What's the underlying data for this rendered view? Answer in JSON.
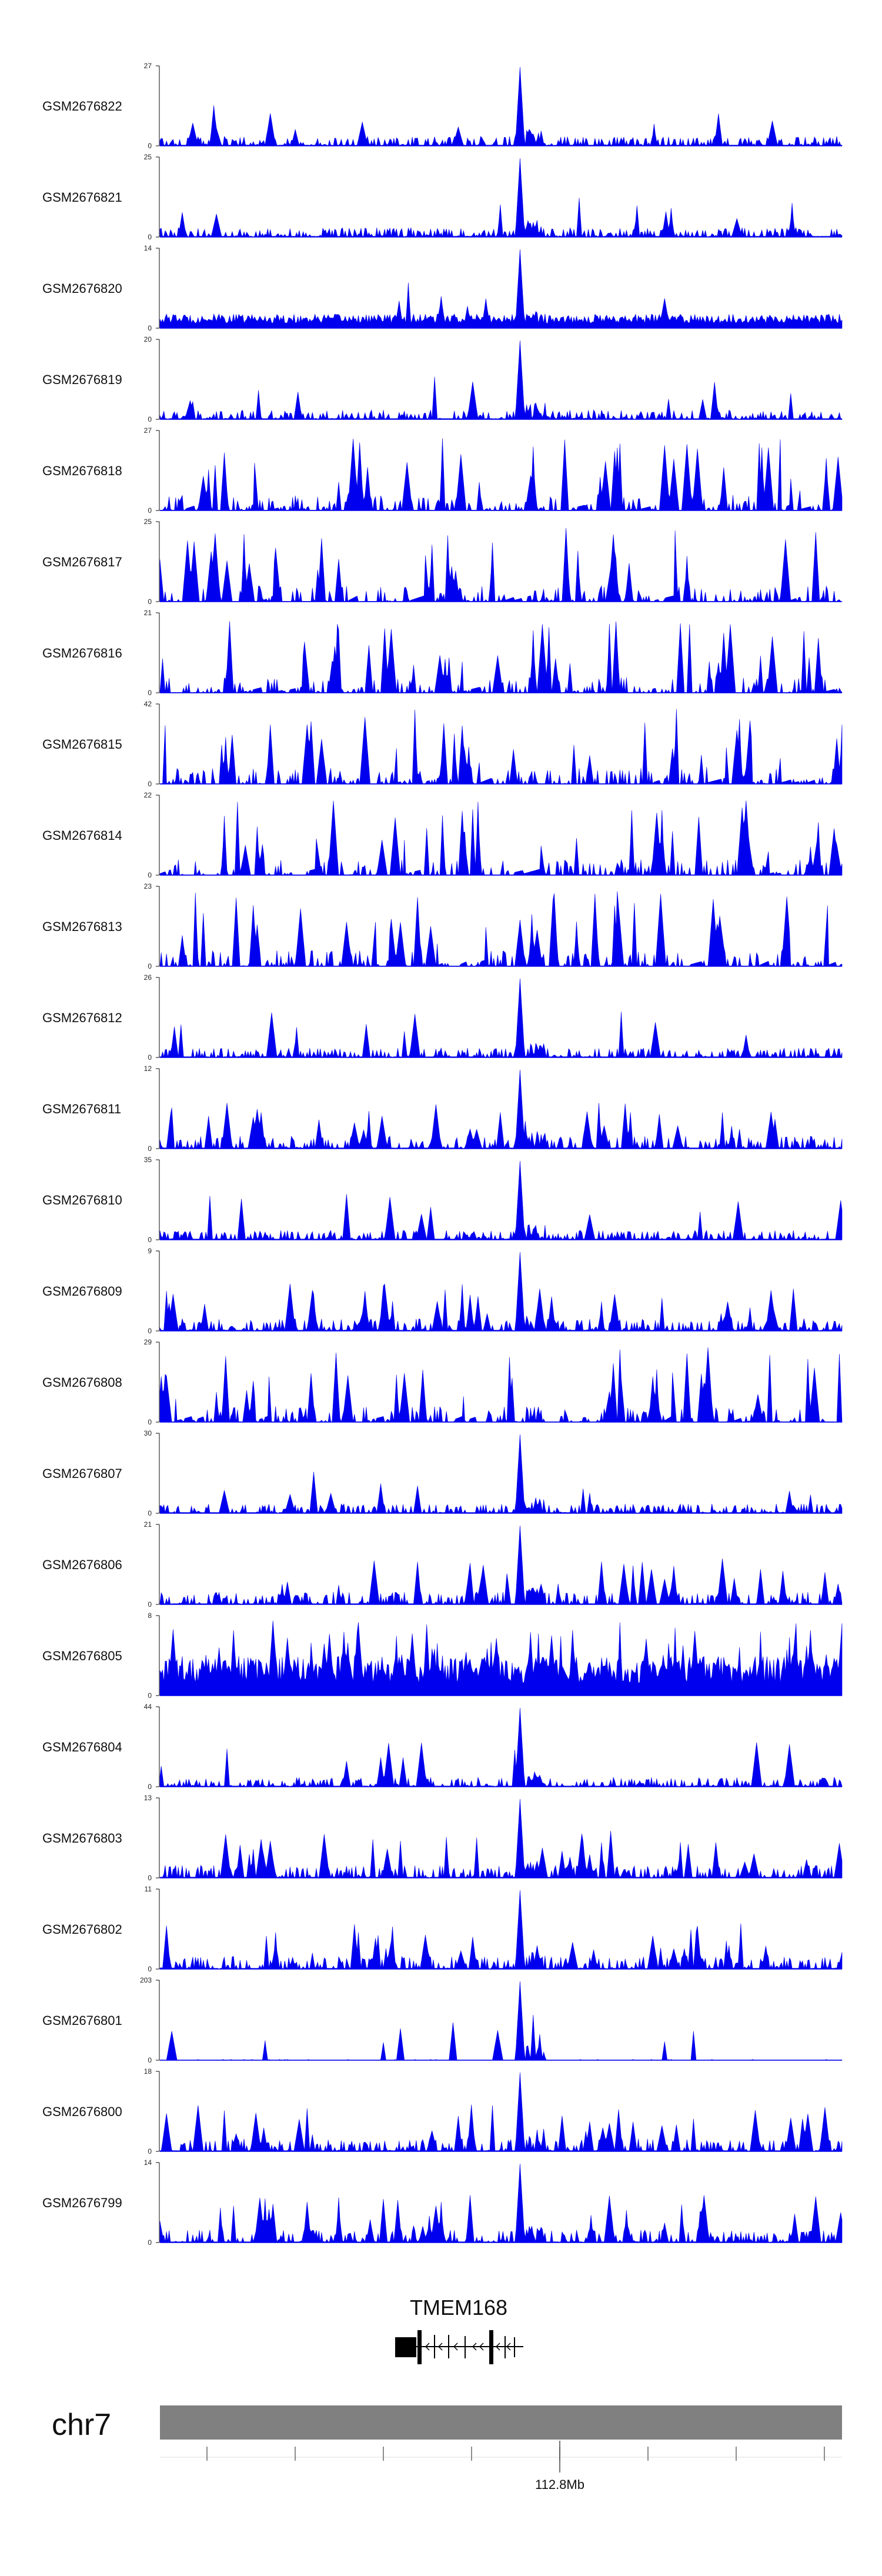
{
  "chart_data": {
    "type": "area",
    "tracks": [
      {
        "sample": "GSM2676822",
        "ymin": 0,
        "ymax": 27,
        "profile": "peak"
      },
      {
        "sample": "GSM2676821",
        "ymin": 0,
        "ymax": 25,
        "profile": "peak"
      },
      {
        "sample": "GSM2676820",
        "ymin": 0,
        "ymax": 14,
        "profile": "dense-peak"
      },
      {
        "sample": "GSM2676819",
        "ymin": 0,
        "ymax": 20,
        "profile": "peak"
      },
      {
        "sample": "GSM2676818",
        "ymin": 0,
        "ymax": 27,
        "profile": "noisy"
      },
      {
        "sample": "GSM2676817",
        "ymin": 0,
        "ymax": 25,
        "profile": "noisy"
      },
      {
        "sample": "GSM2676816",
        "ymin": 0,
        "ymax": 21,
        "profile": "noisy"
      },
      {
        "sample": "GSM2676815",
        "ymin": 0,
        "ymax": 42,
        "profile": "noisy"
      },
      {
        "sample": "GSM2676814",
        "ymin": 0,
        "ymax": 22,
        "profile": "noisy"
      },
      {
        "sample": "GSM2676813",
        "ymin": 0,
        "ymax": 23,
        "profile": "noisy"
      },
      {
        "sample": "GSM2676812",
        "ymin": 0,
        "ymax": 26,
        "profile": "peak"
      },
      {
        "sample": "GSM2676811",
        "ymin": 0,
        "ymax": 12,
        "profile": "mixed"
      },
      {
        "sample": "GSM2676810",
        "ymin": 0,
        "ymax": 35,
        "profile": "peak"
      },
      {
        "sample": "GSM2676809",
        "ymin": 0,
        "ymax": 9,
        "profile": "mixed"
      },
      {
        "sample": "GSM2676808",
        "ymin": 0,
        "ymax": 29,
        "profile": "noisy"
      },
      {
        "sample": "GSM2676807",
        "ymin": 0,
        "ymax": 30,
        "profile": "peak"
      },
      {
        "sample": "GSM2676806",
        "ymin": 0,
        "ymax": 21,
        "profile": "mixed"
      },
      {
        "sample": "GSM2676805",
        "ymin": 0,
        "ymax": 8,
        "profile": "dense"
      },
      {
        "sample": "GSM2676804",
        "ymin": 0,
        "ymax": 44,
        "profile": "peak"
      },
      {
        "sample": "GSM2676803",
        "ymin": 0,
        "ymax": 13,
        "profile": "mixed"
      },
      {
        "sample": "GSM2676802",
        "ymin": 0,
        "ymax": 11,
        "profile": "mixed"
      },
      {
        "sample": "GSM2676801",
        "ymin": 0,
        "ymax": 203,
        "profile": "single"
      },
      {
        "sample": "GSM2676800",
        "ymin": 0,
        "ymax": 18,
        "profile": "mixed"
      },
      {
        "sample": "GSM2676799",
        "ymin": 0,
        "ymax": 14,
        "profile": "mixed"
      }
    ],
    "gene": {
      "name": "TMEM168",
      "strand": "-"
    },
    "chromosome": "chr7",
    "xaxis": {
      "tick_labels": [
        "112.8Mb"
      ]
    },
    "series_color": "#0000ee",
    "ideogram_color": "#808080"
  }
}
